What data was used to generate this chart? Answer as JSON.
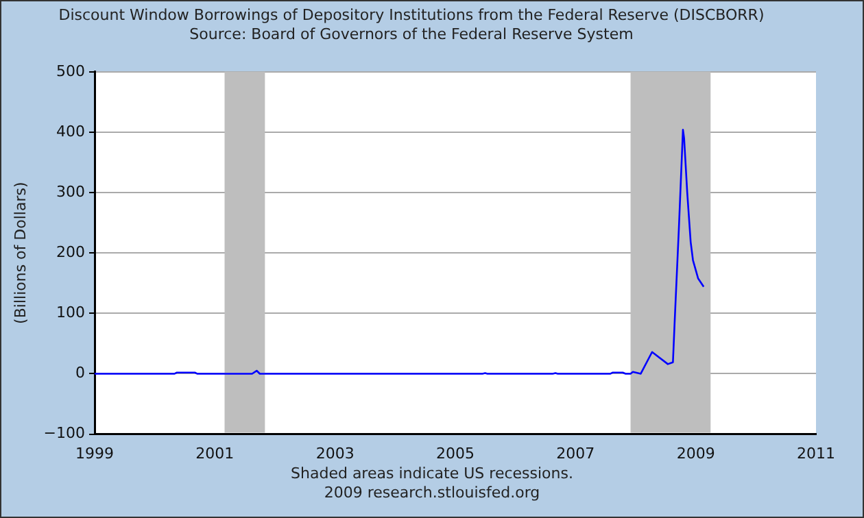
{
  "chart_data": {
    "type": "line",
    "title": "Discount Window Borrowings of Depository Institutions from the Federal Reserve (DISCBORR)",
    "subtitle": "Source: Board of Governors of the Federal Reserve System",
    "ylabel": "(Billions of Dollars)",
    "x": [
      "1999-01-01",
      "2000-05-01",
      "2000-05-15",
      "2000-09-01",
      "2000-09-15",
      "2001-08-15",
      "2001-09-12",
      "2001-10-01",
      "2005-06-15",
      "2005-07-01",
      "2005-07-15",
      "2006-08-15",
      "2006-09-01",
      "2006-09-15",
      "2007-08-01",
      "2007-08-15",
      "2007-10-15",
      "2007-11-01",
      "2007-12-01",
      "2007-12-15",
      "2008-01-15",
      "2008-02-01",
      "2008-04-10",
      "2008-07-15",
      "2008-08-15",
      "2008-08-25",
      "2008-09-20",
      "2008-10-15",
      "2008-10-22",
      "2008-11-10",
      "2008-12-01",
      "2008-12-15",
      "2009-01-15",
      "2009-02-18"
    ],
    "series": [
      {
        "color": "#0000ff",
        "values": [
          0,
          0,
          2,
          2,
          0,
          0,
          5,
          0,
          0,
          1,
          0,
          0,
          1,
          0,
          0,
          2,
          2,
          0,
          0,
          3,
          1,
          0,
          36,
          16,
          19,
          83,
          240,
          404,
          390,
          300,
          218,
          188,
          158,
          144
        ]
      }
    ],
    "xlim": [
      "1999",
      "2011"
    ],
    "xticks": [
      "1999",
      "2001",
      "2003",
      "2005",
      "2007",
      "2009",
      "2011"
    ],
    "ylim": [
      -100,
      500
    ],
    "yticks": [
      -100,
      0,
      100,
      200,
      300,
      400,
      500
    ],
    "grid": "y",
    "legend": false,
    "marker": "none",
    "line_style": "solid",
    "bands": [
      {
        "axis": "x",
        "from": "2001-03",
        "to": "2001-11",
        "color": "#bebebe"
      },
      {
        "axis": "x",
        "from": "2007-12",
        "to": "2009-04",
        "color": "#bebebe"
      }
    ],
    "annotations": [
      "Shaded areas indicate US recessions.",
      "2009 research.stlouisfed.org"
    ]
  }
}
